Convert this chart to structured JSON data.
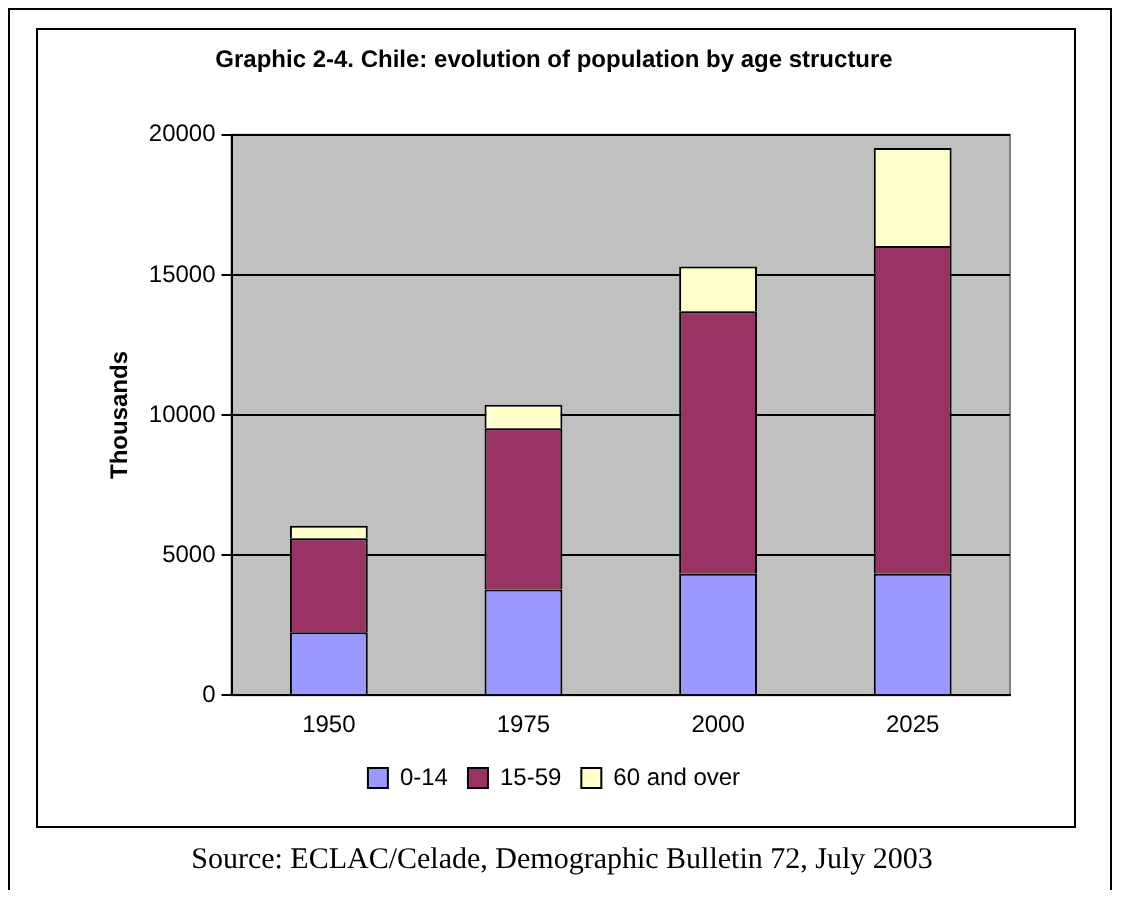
{
  "chart_data": {
    "type": "bar",
    "title": "Graphic 2-4. Chile: evolution of population by age structure",
    "ylabel": "Thousands",
    "categories": [
      "1950",
      "1975",
      "2000",
      "2025"
    ],
    "stacked": true,
    "series": [
      {
        "name": "0-14",
        "color": "#9999ff",
        "values": [
          2250,
          3770,
          4330,
          4330
        ]
      },
      {
        "name": "15-59",
        "color": "#993366",
        "values": [
          3350,
          5760,
          9370,
          11700
        ]
      },
      {
        "name": "60 and over",
        "color": "#ffffcc",
        "values": [
          450,
          840,
          1600,
          3500
        ]
      }
    ],
    "ylim": [
      0,
      20000
    ],
    "yticks": [
      0,
      5000,
      10000,
      15000,
      20000
    ],
    "grid": "y",
    "legend": "bottom",
    "annotations": [
      "Source: ECLAC/Celade, Demographic Bulletin 72, July 2003"
    ]
  }
}
